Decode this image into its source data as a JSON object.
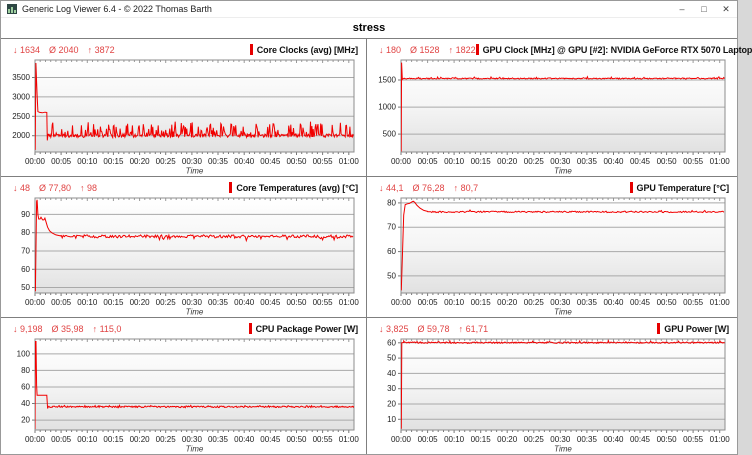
{
  "window": {
    "title": "Generic Log Viewer 6.4 - © 2022 Thomas Barth",
    "controls": {
      "minimize": "–",
      "maximize": "□",
      "close": "✕"
    }
  },
  "header": {
    "title": "stress"
  },
  "colors": {
    "line": "#f10000",
    "marker": "#e60000",
    "stats_text": "#e04444",
    "gridline": "#a9a9a9",
    "plot_border": "#8d8d8d"
  },
  "chart_data": [
    {
      "type": "line",
      "title": "Core Clocks (avg) [MHz]",
      "stats": {
        "min": "↓ 1634",
        "avg": "Ø 2040",
        "max": "↑ 3872"
      },
      "xlabel": "Time",
      "x_ticks": [
        "00:00",
        "00:05",
        "00:10",
        "00:15",
        "00:20",
        "00:25",
        "00:30",
        "00:35",
        "00:40",
        "00:45",
        "00:50",
        "00:55",
        "01:00"
      ],
      "xlim": [
        0,
        61
      ],
      "ylim": [
        1580,
        3950
      ],
      "y_ticks": [
        2000,
        2500,
        3000,
        3500
      ],
      "segments": [
        {
          "type": "points",
          "pts": [
            [
              0,
              1800
            ],
            [
              0.04,
              1634
            ],
            [
              0.18,
              3872
            ],
            [
              0.4,
              3050
            ],
            [
              0.55,
              2620
            ],
            [
              0.9,
              2600
            ],
            [
              1.4,
              2590
            ],
            [
              1.9,
              2605
            ],
            [
              2.25,
              2600
            ],
            [
              2.35,
              1880
            ],
            [
              2.5,
              2050
            ]
          ]
        },
        {
          "type": "noise",
          "t0": 2.5,
          "t1": 61,
          "base": 2000,
          "amp": 45,
          "spike": 340,
          "spikeProb": 0.3,
          "step": 0.13,
          "seed": 11
        }
      ]
    },
    {
      "type": "line",
      "title": "GPU Clock [MHz] @ GPU [#2]: NVIDIA GeForce RTX 5070 Laptop",
      "stats": {
        "min": "↓ 180",
        "avg": "Ø 1528",
        "max": "↑ 1822"
      },
      "xlabel": "Time",
      "x_ticks": [
        "00:00",
        "00:05",
        "00:10",
        "00:15",
        "00:20",
        "00:25",
        "00:30",
        "00:35",
        "00:40",
        "00:45",
        "00:50",
        "00:55",
        "01:00"
      ],
      "xlim": [
        0,
        61
      ],
      "ylim": [
        170,
        1870
      ],
      "y_ticks": [
        500,
        1000,
        1500
      ],
      "segments": [
        {
          "type": "points",
          "pts": [
            [
              0,
              1500
            ],
            [
              0.03,
              180
            ],
            [
              0.12,
              1822
            ],
            [
              0.25,
              1515
            ]
          ]
        },
        {
          "type": "noise",
          "t0": 0.3,
          "t1": 61,
          "base": 1528,
          "amp": 9,
          "spike": 24,
          "spikeProb": 0.1,
          "step": 0.15,
          "seed": 22
        }
      ]
    },
    {
      "type": "line",
      "title": "Core Temperatures (avg) [°C]",
      "stats": {
        "min": "↓ 48",
        "avg": "Ø 77,80",
        "max": "↑ 98"
      },
      "xlabel": "Time",
      "x_ticks": [
        "00:00",
        "00:05",
        "00:10",
        "00:15",
        "00:20",
        "00:25",
        "00:30",
        "00:35",
        "00:40",
        "00:45",
        "00:50",
        "00:55",
        "01:00"
      ],
      "xlim": [
        0,
        61
      ],
      "ylim": [
        47,
        99
      ],
      "y_ticks": [
        50,
        60,
        70,
        80,
        90
      ],
      "segments": [
        {
          "type": "points",
          "pts": [
            [
              0,
              60
            ],
            [
              0.08,
              48
            ],
            [
              0.3,
              97
            ],
            [
              0.4,
              98
            ],
            [
              0.55,
              90
            ],
            [
              0.7,
              87.5
            ],
            [
              0.95,
              87.5
            ],
            [
              1.15,
              88.5
            ],
            [
              1.45,
              87
            ],
            [
              1.7,
              87
            ],
            [
              1.9,
              88
            ],
            [
              2.1,
              86
            ],
            [
              2.4,
              83
            ],
            [
              2.8,
              81
            ],
            [
              3.3,
              79.8
            ],
            [
              4,
              78.8
            ],
            [
              5,
              78.2
            ]
          ]
        },
        {
          "type": "noise",
          "t0": 5,
          "t1": 61,
          "base": 78,
          "amp": 0.8,
          "spike": -1.6,
          "spikeProb": 0.12,
          "step": 0.2,
          "seed": 33
        }
      ]
    },
    {
      "type": "line",
      "title": "GPU Temperature [°C]",
      "stats": {
        "min": "↓ 44,1",
        "avg": "Ø 76,28",
        "max": "↑ 80,7"
      },
      "xlabel": "Time",
      "x_ticks": [
        "00:00",
        "00:05",
        "00:10",
        "00:15",
        "00:20",
        "00:25",
        "00:30",
        "00:35",
        "00:40",
        "00:45",
        "00:50",
        "00:55",
        "01:00"
      ],
      "xlim": [
        0,
        61
      ],
      "ylim": [
        43,
        82
      ],
      "y_ticks": [
        50,
        60,
        70,
        80
      ],
      "segments": [
        {
          "type": "points",
          "pts": [
            [
              0,
              46
            ],
            [
              0.05,
              44.1
            ],
            [
              0.5,
              75
            ],
            [
              0.8,
              79.3
            ],
            [
              1.2,
              79.6
            ],
            [
              1.6,
              79.8
            ],
            [
              2,
              80.3
            ],
            [
              2.3,
              80.7
            ],
            [
              2.6,
              80.2
            ],
            [
              3,
              79
            ],
            [
              3.6,
              77.8
            ],
            [
              4.3,
              76.9
            ],
            [
              5,
              76.5
            ]
          ]
        },
        {
          "type": "noise",
          "t0": 5,
          "t1": 61,
          "base": 76.3,
          "amp": 0.3,
          "spike": 0.5,
          "spikeProb": 0.08,
          "step": 0.2,
          "seed": 44
        }
      ]
    },
    {
      "type": "line",
      "title": "CPU Package Power [W]",
      "stats": {
        "min": "↓ 9,198",
        "avg": "Ø 35,98",
        "max": "↑ 115,0"
      },
      "xlabel": "Time",
      "x_ticks": [
        "00:00",
        "00:05",
        "00:10",
        "00:15",
        "00:20",
        "00:25",
        "00:30",
        "00:35",
        "00:40",
        "00:45",
        "00:50",
        "00:55",
        "01:00"
      ],
      "xlim": [
        0,
        61
      ],
      "ylim": [
        8,
        118
      ],
      "y_ticks": [
        20,
        40,
        60,
        80,
        100
      ],
      "segments": [
        {
          "type": "points",
          "pts": [
            [
              0,
              9.2
            ],
            [
              0.1,
              115
            ],
            [
              0.2,
              115
            ],
            [
              0.3,
              62
            ],
            [
              0.4,
              50
            ],
            [
              1,
              50
            ],
            [
              1.6,
              50
            ],
            [
              2.25,
              50
            ],
            [
              2.4,
              34
            ]
          ]
        },
        {
          "type": "noise",
          "t0": 2.5,
          "t1": 61,
          "base": 36,
          "amp": 0.9,
          "spike": 1.6,
          "spikeProb": 0.1,
          "step": 0.15,
          "seed": 55
        }
      ]
    },
    {
      "type": "line",
      "title": "GPU Power [W]",
      "stats": {
        "min": "↓ 3,825",
        "avg": "Ø 59,78",
        "max": "↑ 61,71"
      },
      "xlabel": "Time",
      "x_ticks": [
        "00:00",
        "00:05",
        "00:10",
        "00:15",
        "00:20",
        "00:25",
        "00:30",
        "00:35",
        "00:40",
        "00:45",
        "00:50",
        "00:55",
        "01:00"
      ],
      "xlim": [
        0,
        61
      ],
      "ylim": [
        3,
        62.5
      ],
      "y_ticks": [
        10,
        20,
        30,
        40,
        50,
        60
      ],
      "segments": [
        {
          "type": "points",
          "pts": [
            [
              0,
              5
            ],
            [
              0.05,
              3.825
            ],
            [
              0.15,
              60
            ],
            [
              0.5,
              60.2
            ]
          ]
        },
        {
          "type": "noise",
          "t0": 0.5,
          "t1": 61,
          "base": 60.1,
          "amp": 0.45,
          "spike": 1.3,
          "spikeProb": 0.08,
          "step": 0.15,
          "seed": 66
        }
      ]
    }
  ]
}
